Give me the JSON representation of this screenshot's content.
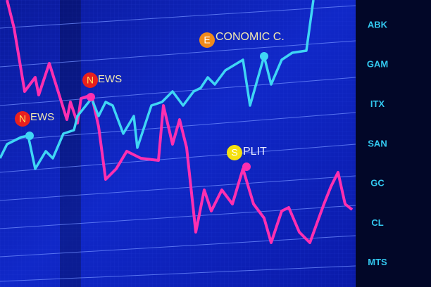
{
  "annotations": [
    {
      "letter": "E",
      "text": "CONOMIC C."
    },
    {
      "letter": "N",
      "text": "EWS"
    },
    {
      "letter": "N",
      "text": "EWS"
    },
    {
      "letter": "S",
      "text": "PLIT"
    }
  ],
  "tickers": [
    "ABK",
    "GAM",
    "ITX",
    "SAN",
    "GC",
    "CL",
    "MTS"
  ]
}
